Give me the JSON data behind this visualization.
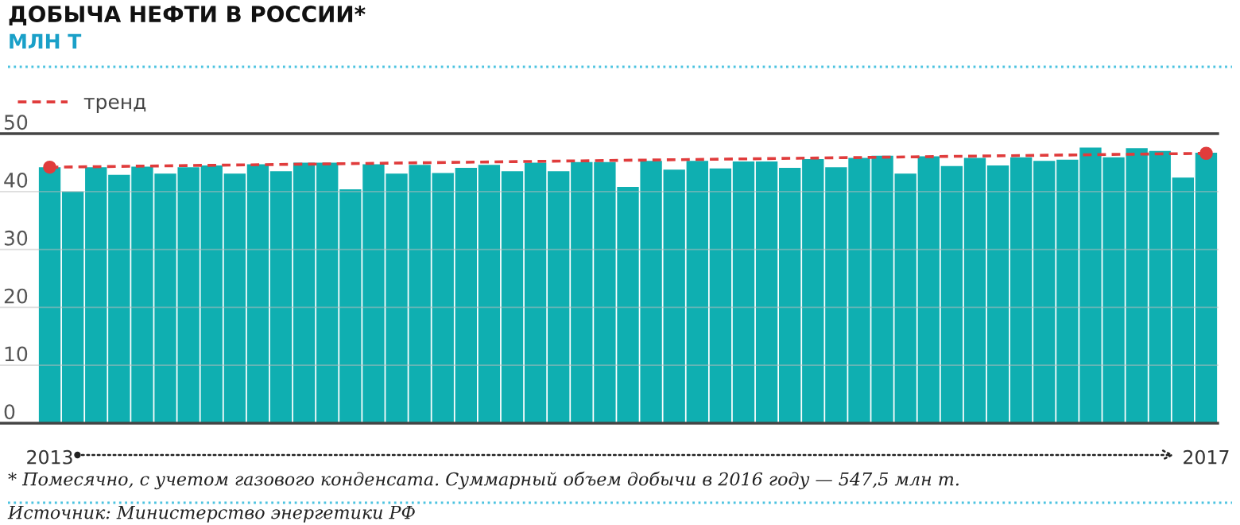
{
  "chart_data": {
    "type": "bar",
    "title": "ДОБЫЧА НЕФТИ В РОССИИ*",
    "subtitle": "МЛН Т",
    "categories": [
      "2013",
      null,
      null,
      null,
      null,
      null,
      null,
      null,
      null,
      null,
      null,
      null,
      null,
      null,
      null,
      null,
      null,
      null,
      null,
      null,
      null,
      null,
      null,
      null,
      null,
      null,
      null,
      null,
      null,
      null,
      null,
      null,
      null,
      null,
      null,
      null,
      null,
      null,
      null,
      null,
      null,
      null,
      null,
      null,
      null,
      null,
      null,
      null,
      null,
      null,
      "2017"
    ],
    "series": [
      {
        "color": "#0fafb1",
        "values": [
          44.2,
          40.0,
          44.2,
          42.9,
          44.3,
          43.1,
          44.2,
          44.5,
          43.1,
          44.7,
          43.5,
          45.0,
          45.0,
          40.4,
          44.7,
          43.1,
          44.6,
          43.2,
          44.1,
          44.6,
          43.5,
          45.0,
          43.5,
          45.1,
          45.1,
          40.8,
          45.3,
          43.8,
          45.3,
          44.0,
          45.2,
          45.2,
          44.1,
          45.6,
          44.2,
          45.8,
          46.2,
          43.1,
          46.1,
          44.4,
          45.8,
          44.5,
          45.9,
          45.3,
          45.5,
          47.6,
          45.9,
          47.5,
          47.0,
          42.4,
          46.7
        ]
      },
      {
        "type": "line",
        "name": "тренд",
        "color": "#e03c3c",
        "values": [
          44.2,
          null,
          null,
          null,
          null,
          null,
          null,
          null,
          null,
          null,
          null,
          null,
          null,
          null,
          null,
          null,
          null,
          null,
          null,
          null,
          null,
          null,
          null,
          null,
          null,
          null,
          null,
          null,
          null,
          null,
          null,
          null,
          null,
          null,
          null,
          null,
          null,
          null,
          null,
          null,
          null,
          null,
          null,
          null,
          null,
          null,
          null,
          null,
          null,
          null,
          46.6
        ],
        "line_style": "dashed",
        "marker": "circle"
      }
    ],
    "ylim": [
      0,
      50
    ],
    "yticks": [
      0,
      10,
      20,
      30,
      40,
      50
    ],
    "grid": "y",
    "legend": "top left",
    "annotations": [
      "* Помесячно, с учетом газового конденсата. Суммарный объем добычи в 2016 году — 547,5 млн т.",
      "Источник: Министерство энергетики РФ"
    ]
  }
}
